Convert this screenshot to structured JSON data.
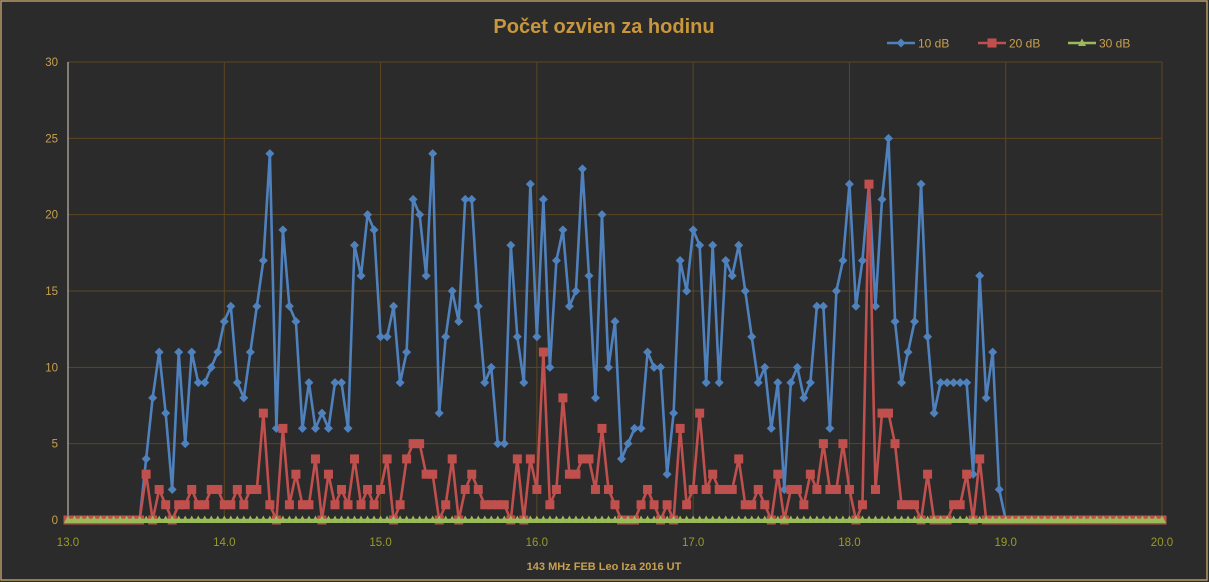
{
  "chart_data": {
    "type": "line",
    "title": "Počet ozvien za hodinu",
    "xlabel": "143 MHz FEB Leo Iza  2016  UT",
    "ylabel": "",
    "xlim": [
      13.0,
      20.0
    ],
    "ylim": [
      0,
      30
    ],
    "x_step_hours": 0.041667,
    "x_ticks": [
      "13.0",
      "14.0",
      "15.0",
      "16.0",
      "17.0",
      "18.0",
      "19.0",
      "20.0"
    ],
    "y_ticks": [
      "0",
      "5",
      "10",
      "15",
      "20",
      "25",
      "30"
    ],
    "grid": true,
    "legend_position": "top-right",
    "series": [
      {
        "name": "10 dB",
        "color": "#4f81bd",
        "marker": "diamond",
        "values": [
          0,
          0,
          0,
          0,
          0,
          0,
          0,
          0,
          0,
          0,
          0,
          0,
          4,
          8,
          11,
          7,
          2,
          11,
          5,
          11,
          9,
          9,
          10,
          11,
          13,
          14,
          9,
          8,
          11,
          14,
          17,
          24,
          6,
          19,
          14,
          13,
          6,
          9,
          6,
          7,
          6,
          9,
          9,
          6,
          18,
          16,
          20,
          19,
          12,
          12,
          14,
          9,
          11,
          21,
          20,
          16,
          24,
          7,
          12,
          15,
          13,
          21,
          21,
          14,
          9,
          10,
          5,
          5,
          18,
          12,
          9,
          22,
          12,
          21,
          10,
          17,
          19,
          14,
          15,
          23,
          16,
          8,
          20,
          10,
          13,
          4,
          5,
          6,
          6,
          11,
          10,
          10,
          3,
          7,
          17,
          15,
          19,
          18,
          9,
          18,
          9,
          17,
          16,
          18,
          15,
          12,
          9,
          10,
          6,
          9,
          2,
          9,
          10,
          8,
          9,
          14,
          14,
          6,
          15,
          17,
          22,
          14,
          17,
          22,
          14,
          21,
          25,
          13,
          9,
          11,
          13,
          22,
          12,
          7,
          9,
          9,
          9,
          9,
          9,
          3,
          16,
          8,
          11,
          2,
          0,
          0,
          0,
          0,
          0,
          0,
          0,
          0,
          0,
          0,
          0,
          0,
          0,
          0,
          0,
          0,
          0,
          0,
          0,
          0,
          0,
          0,
          0,
          0,
          0
        ]
      },
      {
        "name": "20 dB",
        "color": "#c0504d",
        "marker": "square",
        "values": [
          0,
          0,
          0,
          0,
          0,
          0,
          0,
          0,
          0,
          0,
          0,
          0,
          3,
          0,
          2,
          1,
          0,
          1,
          1,
          2,
          1,
          1,
          2,
          2,
          1,
          1,
          2,
          1,
          2,
          2,
          7,
          1,
          0,
          6,
          1,
          3,
          1,
          1,
          4,
          0,
          3,
          1,
          2,
          1,
          4,
          1,
          2,
          1,
          2,
          4,
          0,
          1,
          4,
          5,
          5,
          3,
          3,
          0,
          1,
          4,
          0,
          2,
          3,
          2,
          1,
          1,
          1,
          1,
          0,
          4,
          0,
          4,
          2,
          11,
          1,
          2,
          8,
          3,
          3,
          4,
          4,
          2,
          6,
          2,
          1,
          0,
          0,
          0,
          1,
          2,
          1,
          0,
          1,
          0,
          6,
          1,
          2,
          7,
          2,
          3,
          2,
          2,
          2,
          4,
          1,
          1,
          2,
          1,
          0,
          3,
          0,
          2,
          2,
          1,
          3,
          2,
          5,
          2,
          2,
          5,
          2,
          0,
          1,
          22,
          2,
          7,
          7,
          5,
          1,
          1,
          1,
          0,
          3,
          0,
          0,
          0,
          1,
          1,
          3,
          0,
          4,
          0,
          0,
          0,
          0,
          0,
          0,
          0,
          0,
          0,
          0,
          0,
          0,
          0,
          0,
          0,
          0,
          0,
          0,
          0,
          0,
          0,
          0,
          0,
          0,
          0,
          0,
          0,
          0
        ]
      },
      {
        "name": "30 dB",
        "color": "#9bbb59",
        "marker": "triangle",
        "values": [
          0,
          0,
          0,
          0,
          0,
          0,
          0,
          0,
          0,
          0,
          0,
          0,
          0,
          0,
          0,
          0,
          0,
          0,
          0,
          0,
          0,
          0,
          0,
          0,
          0,
          0,
          0,
          0,
          0,
          0,
          0,
          0,
          0,
          0,
          0,
          0,
          0,
          0,
          0,
          0,
          0,
          0,
          0,
          0,
          0,
          0,
          0,
          0,
          0,
          0,
          0,
          0,
          0,
          0,
          0,
          0,
          0,
          0,
          0,
          0,
          0,
          0,
          0,
          0,
          0,
          0,
          0,
          0,
          0,
          0,
          0,
          0,
          0,
          0,
          0,
          0,
          0,
          0,
          0,
          0,
          0,
          0,
          0,
          0,
          0,
          0,
          0,
          0,
          0,
          0,
          0,
          0,
          0,
          0,
          0,
          0,
          0,
          0,
          0,
          0,
          0,
          0,
          0,
          0,
          0,
          0,
          0,
          0,
          0,
          0,
          0,
          0,
          0,
          0,
          0,
          0,
          0,
          0,
          0,
          0,
          0,
          0,
          0,
          0,
          0,
          0,
          0,
          0,
          0,
          0,
          0,
          0,
          0,
          0,
          0,
          0,
          0,
          0,
          0,
          0,
          0,
          0,
          0,
          0,
          0,
          0,
          0,
          0,
          0,
          0,
          0,
          0,
          0,
          0,
          0,
          0,
          0,
          0,
          0,
          0,
          0,
          0,
          0,
          0,
          0,
          0,
          0,
          0,
          0
        ]
      }
    ]
  }
}
